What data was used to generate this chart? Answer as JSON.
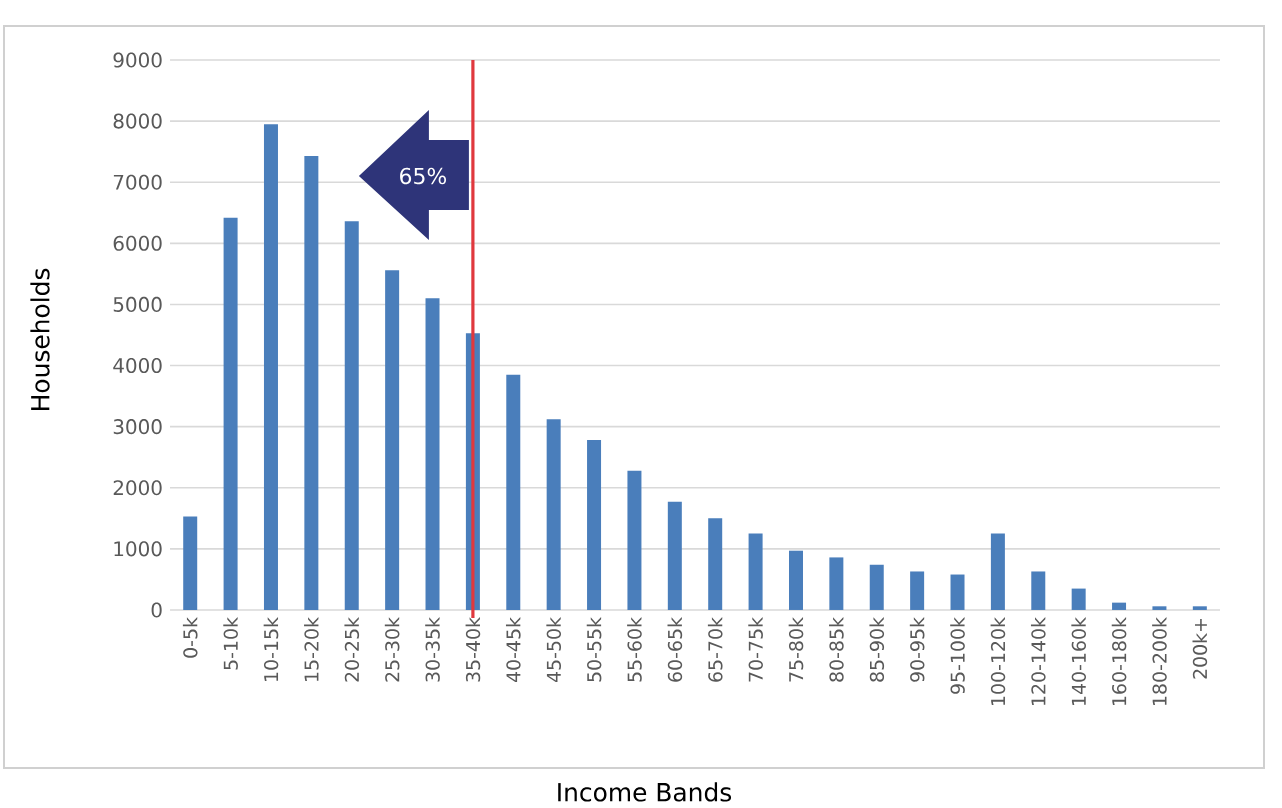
{
  "chart_data": {
    "type": "bar",
    "xlabel": "Income Bands",
    "ylabel": "Households",
    "categories": [
      "0-5k",
      "5-10k",
      "10-15k",
      "15-20k",
      "20-25k",
      "25-30k",
      "30-35k",
      "35-40k",
      "40-45k",
      "45-50k",
      "50-55k",
      "55-60k",
      "60-65k",
      "65-70k",
      "70-75k",
      "75-80k",
      "80-85k",
      "85-90k",
      "90-95k",
      "95-100k",
      "100-120k",
      "120-140k",
      "140-160k",
      "160-180k",
      "180-200k",
      "200k+"
    ],
    "values": [
      1530,
      6420,
      7950,
      7430,
      6360,
      5560,
      5100,
      4530,
      3850,
      3120,
      2780,
      2280,
      1770,
      1500,
      1250,
      970,
      860,
      740,
      630,
      580,
      1250,
      630,
      350,
      120,
      60,
      60
    ],
    "color": "#4a7ebb",
    "ylim": [
      0,
      9000
    ],
    "yticks": [
      0,
      1000,
      2000,
      3000,
      4000,
      5000,
      6000,
      7000,
      8000,
      9000
    ],
    "grid": "y",
    "ref_lines": [
      {
        "axis": "x",
        "value": "35-40k",
        "label": "65%",
        "color": "#e0383e"
      }
    ]
  }
}
